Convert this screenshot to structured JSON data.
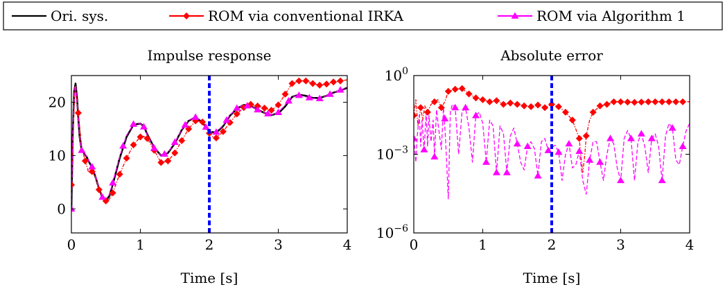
{
  "legend": {
    "placement": "top-center",
    "items": [
      {
        "label": "Ori. sys.",
        "color": "#000000",
        "marker": "none"
      },
      {
        "label": "ROM via conventional IRKA",
        "color": "#ff0000",
        "marker": "diamond"
      },
      {
        "label": "ROM via Algorithm 1",
        "color": "#ff00ff",
        "marker": "triangle"
      }
    ]
  },
  "chart_data": [
    {
      "type": "line",
      "title": "Impulse response",
      "xlabel": "Time [s]",
      "ylabel": "",
      "xlim": [
        0,
        4
      ],
      "ylim": [
        -4.5,
        25
      ],
      "xticks": [
        0,
        1,
        2,
        3,
        4
      ],
      "yticks": [
        0,
        10,
        20
      ],
      "grid": false,
      "vline": {
        "x": 2,
        "color": "#0000ff",
        "style": "dashed"
      },
      "series": [
        {
          "name": "Ori. sys.",
          "color": "#000000",
          "style": "solid",
          "x": [
            0,
            0.02,
            0.04,
            0.06,
            0.08,
            0.1,
            0.12,
            0.15,
            0.18,
            0.22,
            0.26,
            0.3,
            0.35,
            0.4,
            0.45,
            0.5,
            0.55,
            0.6,
            0.7,
            0.8,
            0.9,
            1.0,
            1.05,
            1.1,
            1.2,
            1.3,
            1.4,
            1.5,
            1.6,
            1.7,
            1.8,
            1.9,
            2.0,
            2.1,
            2.2,
            2.3,
            2.4,
            2.5,
            2.6,
            2.7,
            2.8,
            2.9,
            3.0,
            3.1,
            3.2,
            3.3,
            3.4,
            3.5,
            3.6,
            3.7,
            3.8,
            3.9,
            4.0
          ],
          "y": [
            0,
            14,
            22,
            23.5,
            21,
            17,
            13.5,
            11,
            10.5,
            9.8,
            8.7,
            7.8,
            6,
            3.8,
            2.1,
            1.6,
            2.4,
            4.6,
            9.5,
            13.5,
            15.8,
            16,
            15.5,
            14,
            11.5,
            10,
            10.5,
            12.3,
            14.8,
            16.5,
            17.2,
            16.2,
            14.5,
            14.3,
            15.5,
            17.5,
            18.8,
            19.5,
            19.3,
            18.6,
            18,
            17.6,
            17.9,
            19.2,
            21,
            21.4,
            21.2,
            20.8,
            20.8,
            21.2,
            21.8,
            22.2,
            22.7
          ]
        },
        {
          "name": "ROM via conventional IRKA",
          "color": "#ff0000",
          "style": "dashdot",
          "marker": "diamond",
          "x": [
            0,
            0.05,
            0.1,
            0.15,
            0.2,
            0.25,
            0.3,
            0.35,
            0.4,
            0.45,
            0.5,
            0.55,
            0.6,
            0.7,
            0.8,
            0.9,
            1.0,
            1.05,
            1.1,
            1.2,
            1.3,
            1.4,
            1.5,
            1.6,
            1.7,
            1.8,
            1.9,
            2.0,
            2.05,
            2.1,
            2.2,
            2.3,
            2.4,
            2.5,
            2.6,
            2.7,
            2.8,
            2.9,
            3.0,
            3.1,
            3.2,
            3.3,
            3.4,
            3.5,
            3.6,
            3.7,
            3.8,
            3.9,
            4.0
          ],
          "y": [
            4.5,
            23,
            18,
            11.5,
            9,
            6.8,
            7,
            5.8,
            3.6,
            2,
            1.5,
            1.8,
            3,
            6.5,
            9.5,
            12,
            13.5,
            13.6,
            13.2,
            11,
            8.7,
            9,
            10.5,
            12.8,
            15,
            16.5,
            16.3,
            14.2,
            13.5,
            13.3,
            14.5,
            16.2,
            17.8,
            19,
            19.6,
            19.3,
            18.9,
            18.5,
            19.5,
            21.5,
            23.5,
            24,
            24,
            23.5,
            23.2,
            23.4,
            23.8,
            24,
            24.2
          ],
          "markers_x": [
            0,
            0.1,
            0.2,
            0.3,
            0.4,
            0.5,
            0.6,
            0.7,
            0.8,
            0.9,
            1.0,
            1.1,
            1.2,
            1.3,
            1.4,
            1.5,
            1.6,
            1.7,
            1.8,
            1.9,
            2.0,
            2.1,
            2.2,
            2.3,
            2.4,
            2.5,
            2.6,
            2.7,
            2.8,
            2.9,
            3.0,
            3.1,
            3.2,
            3.3,
            3.4,
            3.5,
            3.6,
            3.7,
            3.8,
            3.9
          ]
        },
        {
          "name": "ROM via Algorithm 1",
          "color": "#ff00ff",
          "style": "dashed",
          "marker": "triangle",
          "x": [
            0,
            0.02,
            0.04,
            0.06,
            0.08,
            0.1,
            0.12,
            0.15,
            0.18,
            0.22,
            0.26,
            0.3,
            0.35,
            0.4,
            0.45,
            0.5,
            0.55,
            0.6,
            0.7,
            0.8,
            0.9,
            1.0,
            1.05,
            1.1,
            1.2,
            1.3,
            1.4,
            1.5,
            1.6,
            1.7,
            1.8,
            1.9,
            2.0,
            2.1,
            2.2,
            2.3,
            2.4,
            2.5,
            2.6,
            2.7,
            2.8,
            2.9,
            3.0,
            3.1,
            3.2,
            3.3,
            3.4,
            3.5,
            3.6,
            3.7,
            3.8,
            3.9,
            4.0
          ],
          "y": [
            0,
            13.8,
            21.8,
            23.2,
            20.8,
            16.8,
            13.3,
            11,
            10.5,
            9.9,
            8.8,
            7.9,
            6.1,
            3.9,
            2.2,
            1.8,
            2.7,
            4.9,
            9.8,
            13.8,
            15.9,
            16,
            15.4,
            13.9,
            11.4,
            10,
            10.6,
            12.5,
            14.9,
            16.6,
            17.2,
            16.1,
            14.6,
            14.4,
            15.7,
            17.6,
            18.9,
            19.5,
            19.2,
            18.6,
            18,
            17.7,
            18.1,
            19.5,
            21,
            21.3,
            21,
            20.7,
            20.7,
            21.2,
            21.8,
            22.3,
            22.7
          ],
          "markers_x": [
            0,
            0.15,
            0.3,
            0.45,
            0.6,
            0.75,
            0.9,
            1.05,
            1.2,
            1.35,
            1.5,
            1.65,
            1.8,
            1.95,
            2.1,
            2.25,
            2.4,
            2.55,
            2.7,
            2.85,
            3.0,
            3.15,
            3.3,
            3.45,
            3.6,
            3.75,
            3.9
          ]
        }
      ]
    },
    {
      "type": "line",
      "title": "Absolute error",
      "xlabel": "Time [s]",
      "ylabel": "",
      "yscale": "log",
      "xlim": [
        0,
        4
      ],
      "ylim": [
        1e-06,
        1
      ],
      "xticks": [
        0,
        1,
        2,
        3,
        4
      ],
      "yticks": [
        1e-06,
        0.001,
        1
      ],
      "ytick_labels": [
        {
          "base": "10",
          "exp": "−6"
        },
        {
          "base": "10",
          "exp": "−3"
        },
        {
          "base": "10",
          "exp": "0"
        }
      ],
      "grid": false,
      "vline": {
        "x": 2,
        "color": "#0000ff",
        "style": "dashed"
      },
      "series": [
        {
          "name": "ROM via conventional IRKA",
          "color": "#ff0000",
          "style": "dashdot",
          "marker": "diamond",
          "x": [
            0,
            0.03,
            0.06,
            0.1,
            0.13,
            0.16,
            0.2,
            0.25,
            0.3,
            0.35,
            0.4,
            0.45,
            0.5,
            0.6,
            0.7,
            0.8,
            0.9,
            1.0,
            1.1,
            1.2,
            1.3,
            1.4,
            1.5,
            1.6,
            1.7,
            1.8,
            1.9,
            2.0,
            2.1,
            2.2,
            2.3,
            2.4,
            2.42,
            2.45,
            2.48,
            2.5,
            2.55,
            2.6,
            2.7,
            2.8,
            2.9,
            3.0,
            3.2,
            3.4,
            3.6,
            3.8,
            4.0
          ],
          "y": [
            0.03,
            0.12,
            0.012,
            0.06,
            0.02,
            0.07,
            0.04,
            0.08,
            0.1,
            0.12,
            0.06,
            0.1,
            0.25,
            0.3,
            0.32,
            0.2,
            0.14,
            0.12,
            0.1,
            0.11,
            0.08,
            0.09,
            0.08,
            0.07,
            0.065,
            0.075,
            0.06,
            0.08,
            0.065,
            0.04,
            0.02,
            0.004,
            0.001,
            0.0002,
            0.001,
            0.005,
            0.02,
            0.04,
            0.07,
            0.08,
            0.1,
            0.1,
            0.095,
            0.1,
            0.1,
            0.1,
            0.1
          ],
          "markers_x": [
            0,
            0.1,
            0.2,
            0.3,
            0.4,
            0.5,
            0.6,
            0.7,
            0.8,
            0.9,
            1.0,
            1.1,
            1.2,
            1.3,
            1.4,
            1.5,
            1.6,
            1.7,
            1.8,
            1.9,
            2.0,
            2.1,
            2.2,
            2.3,
            2.4,
            2.5,
            2.6,
            2.7,
            2.8,
            2.9,
            3.0,
            3.1,
            3.2,
            3.3,
            3.4,
            3.5,
            3.6,
            3.7,
            3.8,
            3.9
          ]
        },
        {
          "name": "ROM via Algorithm 1",
          "color": "#ff00ff",
          "style": "dashed",
          "marker": "triangle",
          "x": [
            0,
            0.03,
            0.05,
            0.08,
            0.1,
            0.12,
            0.15,
            0.18,
            0.2,
            0.22,
            0.25,
            0.28,
            0.3,
            0.33,
            0.36,
            0.4,
            0.43,
            0.46,
            0.5,
            0.53,
            0.56,
            0.6,
            0.65,
            0.7,
            0.75,
            0.8,
            0.85,
            0.9,
            0.95,
            1.0,
            1.05,
            1.1,
            1.15,
            1.2,
            1.25,
            1.3,
            1.35,
            1.4,
            1.45,
            1.5,
            1.55,
            1.6,
            1.65,
            1.7,
            1.75,
            1.8,
            1.85,
            1.9,
            1.95,
            2.0,
            2.05,
            2.1,
            2.15,
            2.2,
            2.25,
            2.3,
            2.35,
            2.4,
            2.45,
            2.5,
            2.55,
            2.6,
            2.65,
            2.7,
            2.75,
            2.8,
            2.85,
            2.9,
            2.95,
            3.0,
            3.05,
            3.1,
            3.15,
            3.2,
            3.25,
            3.3,
            3.35,
            3.4,
            3.45,
            3.5,
            3.55,
            3.6,
            3.65,
            3.7,
            3.75,
            3.8,
            3.85,
            3.9,
            3.95,
            4.0
          ],
          "y": [
            0.004,
            0.0005,
            0.005,
            0.03,
            0.002,
            0.02,
            0.0015,
            0.04,
            0.002,
            0.03,
            0.003,
            0.02,
            0.0008,
            0.05,
            0.01,
            0.0015,
            0.06,
            0.004,
            2e-05,
            0.04,
            0.08,
            0.06,
            0.001,
            0.04,
            0.06,
            0.01,
            0.0005,
            0.03,
            0.04,
            0.015,
            0.0005,
            0.02,
            0.012,
            0.0002,
            0.012,
            0.006,
            0.0002,
            0.005,
            0.01,
            0.0025,
            0.0005,
            0.00025,
            0.002,
            0.003,
            0.0016,
            0.00015,
            0.003,
            0.004,
            0.0014,
            0.0018,
            0.0022,
            0.0012,
            0.0001,
            0.001,
            0.0025,
            0.0003,
            0.0004,
            0.0013,
            0.0001,
            3e-05,
            0.0006,
            0.003,
            0.003,
            0.0005,
            0.0001,
            0.001,
            0.004,
            0.0025,
            0.0003,
            0.0001,
            0.004,
            0.008,
            0.004,
            0.0001,
            0.003,
            0.006,
            0.002,
            0.0002,
            0.004,
            0.006,
            0.002,
            0.0001,
            0.005,
            0.015,
            0.01,
            0.0006,
            0.0004,
            0.002,
            0.008,
            0.015
          ],
          "markers_x": [
            0,
            0.15,
            0.3,
            0.45,
            0.6,
            0.75,
            0.9,
            1.05,
            1.2,
            1.35,
            1.5,
            1.65,
            1.8,
            1.95,
            2.1,
            2.25,
            2.4,
            2.55,
            2.7,
            2.85,
            3.0,
            3.15,
            3.3,
            3.45,
            3.6,
            3.75,
            3.9
          ]
        }
      ]
    }
  ]
}
